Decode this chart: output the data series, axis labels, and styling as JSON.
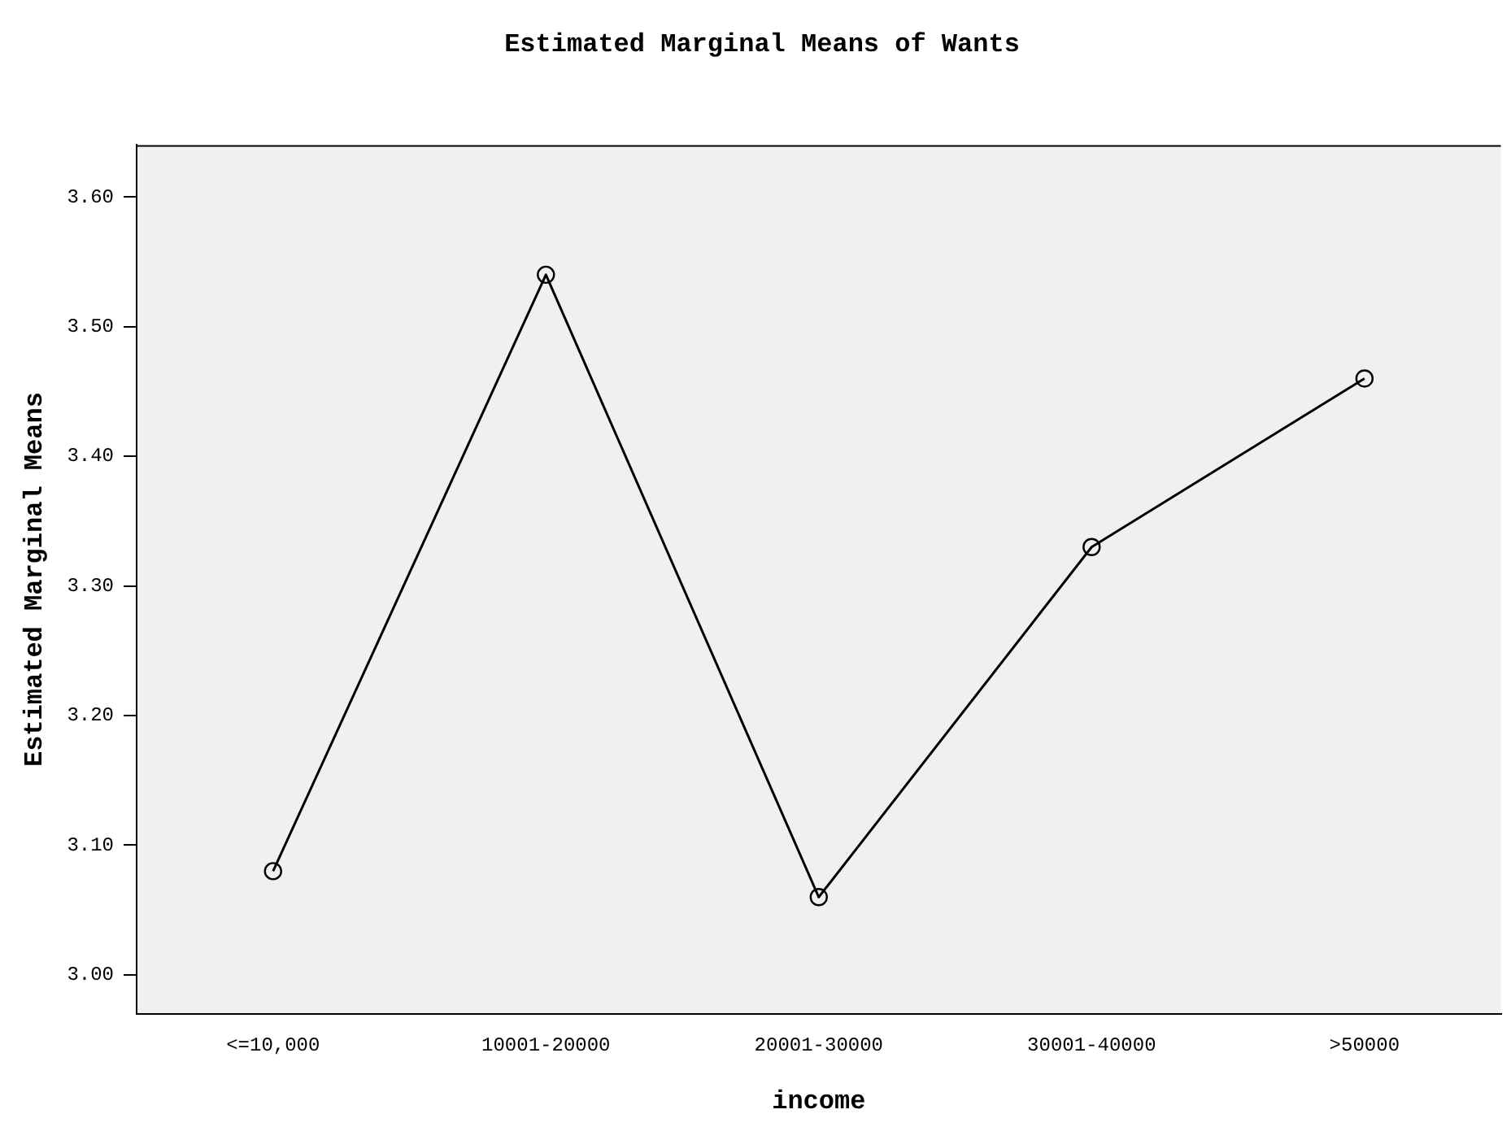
{
  "chart_data": {
    "type": "line",
    "title": "Estimated Marginal Means of Wants",
    "xlabel": "income",
    "ylabel": "Estimated Marginal Means",
    "categories": [
      "<=10,000",
      "10001-20000",
      "20001-30000",
      "30001-40000",
      ">50000"
    ],
    "values": [
      3.08,
      3.54,
      3.06,
      3.33,
      3.46
    ],
    "color": "#000000",
    "marker": "circle",
    "ylim": [
      2.97,
      3.64
    ],
    "yticks": [
      {
        "value": 3,
        "label": "3.00"
      },
      {
        "value": 3.1,
        "label": "3.10"
      },
      {
        "value": 3.2,
        "label": "3.20"
      },
      {
        "value": 3.3,
        "label": "3.30"
      },
      {
        "value": 3.4,
        "label": "3.40"
      },
      {
        "value": 3.5,
        "label": "3.50"
      },
      {
        "value": 3.6,
        "label": "3.60"
      }
    ],
    "grid": false,
    "legend": false
  }
}
